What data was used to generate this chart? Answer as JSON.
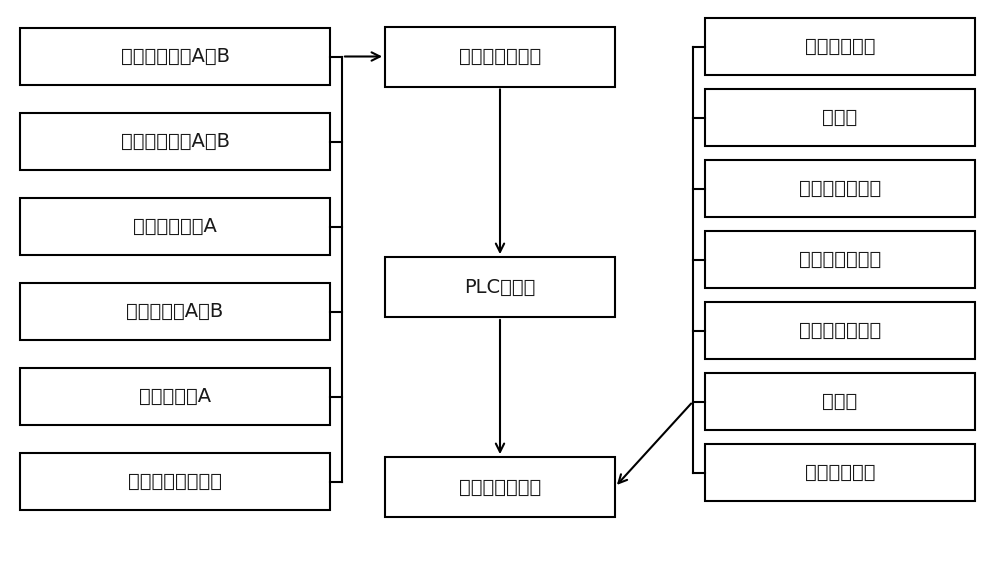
{
  "bg_color": "#ffffff",
  "left_boxes": [
    "水含量传感器A、B",
    "微量氧传感器A、B",
    "常量氧传感器A",
    "压力传感器A、B",
    "温度传感器A",
    "其他模拟量传感器"
  ],
  "mid_boxes": [
    "模拟量输入模块",
    "PLC控制器",
    "数字量输出模块"
  ],
  "right_boxes": [
    "真空泵挡板阀",
    "真空泵",
    "通入氯气电磁阀",
    "通入空气电磁阀",
    "排出氯气电磁阀",
    "蜂鸣器",
    "循环净化模块"
  ],
  "box_color": "#ffffff",
  "box_edge_color": "#000000",
  "text_color": "#1a1a1a",
  "arrow_color": "#000000",
  "line_color": "#000000",
  "font_size": 14,
  "fig_width": 10.0,
  "fig_height": 5.73
}
